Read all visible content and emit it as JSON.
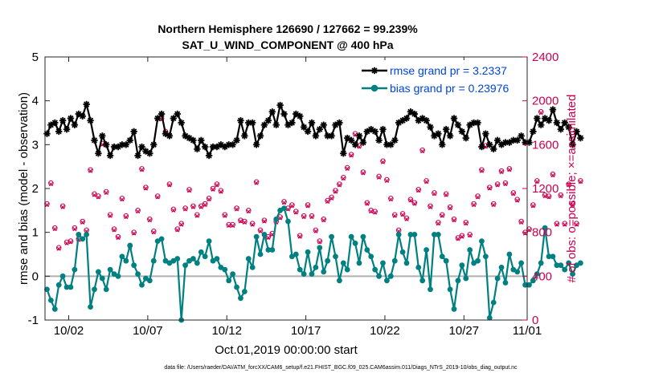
{
  "chart_data": {
    "type": "line",
    "title_line1": "Northern Hemisphere 126690 / 127662 = 99.239%",
    "title_line2": "SAT_U_WIND_COMPONENT @ 400 hPa",
    "xlabel": "Oct.01,2019 00:00:00 start",
    "ylabel": "rmse and bias (model - observation)",
    "y2label": "# of obs: o=possible; ×=assimilated",
    "footnote": "data file: /Users/raeder/DAI/ATM_forcXX/CAM6_setup/f.e21.FHIST_BGC.f09_025.CAM6assim.011/Diags_NTrS_2019-10/obs_diag_output.nc",
    "x_range": [
      0.5,
      31.0
    ],
    "ylim": [
      -1,
      5
    ],
    "y2lim": [
      0,
      2400
    ],
    "x_ticks": [
      {
        "pos": 2,
        "label": "10/02"
      },
      {
        "pos": 7,
        "label": "10/07"
      },
      {
        "pos": 12,
        "label": "10/12"
      },
      {
        "pos": 17,
        "label": "10/17"
      },
      {
        "pos": 22,
        "label": "10/22"
      },
      {
        "pos": 27,
        "label": "10/27"
      },
      {
        "pos": 31,
        "label": "11/01"
      }
    ],
    "y_ticks": [
      {
        "v": -1,
        "label": "-1"
      },
      {
        "v": 0,
        "label": "0"
      },
      {
        "v": 1,
        "label": "1"
      },
      {
        "v": 2,
        "label": "2"
      },
      {
        "v": 3,
        "label": "3"
      },
      {
        "v": 4,
        "label": "4"
      },
      {
        "v": 5,
        "label": "5"
      }
    ],
    "y2_ticks": [
      {
        "v": 0,
        "label": "0"
      },
      {
        "v": 400,
        "label": "400"
      },
      {
        "v": 800,
        "label": "800"
      },
      {
        "v": 1200,
        "label": "1200"
      },
      {
        "v": 1600,
        "label": "1600"
      },
      {
        "v": 2000,
        "label": "2000"
      },
      {
        "v": 2400,
        "label": "2400"
      }
    ],
    "grid": false,
    "zero_line": true,
    "legend_position": "top-right",
    "colors": {
      "rmse": "#000000",
      "bias": "#008080",
      "obs": "#cc0050",
      "zero_line": "#b0b0b0"
    },
    "series": [
      {
        "name": "rmse",
        "legend": "rmse grand pr = 3.2337",
        "x_start": 0.625,
        "x_step": 0.25,
        "values": [
          3.25,
          3.45,
          3.5,
          3.3,
          3.55,
          3.35,
          3.6,
          3.45,
          3.7,
          3.65,
          3.92,
          3.55,
          3.1,
          2.8,
          3.2,
          3.0,
          2.75,
          2.95,
          2.95,
          3.0,
          3.0,
          3.1,
          3.3,
          2.75,
          2.95,
          2.85,
          2.8,
          3.0,
          3.6,
          3.7,
          3.25,
          3.2,
          3.6,
          3.7,
          3.5,
          3.2,
          3.15,
          3.1,
          2.9,
          3.1,
          2.95,
          2.75,
          2.95,
          2.95,
          3.0,
          2.95,
          3.0,
          3.0,
          3.1,
          3.55,
          3.2,
          3.5,
          3.5,
          3.0,
          3.2,
          3.45,
          3.55,
          3.75,
          3.45,
          3.9,
          3.7,
          3.45,
          3.5,
          3.7,
          3.65,
          3.4,
          3.3,
          3.5,
          3.2,
          3.35,
          3.45,
          3.2,
          3.2,
          3.45,
          3.5,
          2.8,
          3.15,
          3.1,
          3.0,
          3.2,
          3.05,
          3.3,
          3.35,
          3.3,
          3.1,
          3.35,
          3.0,
          3.0,
          3.1,
          3.5,
          3.55,
          3.6,
          3.75,
          3.7,
          3.55,
          3.6,
          3.55,
          3.4,
          3.2,
          3.25,
          3.0,
          3.35,
          3.2,
          3.6,
          3.45,
          3.3,
          3.15,
          3.45,
          3.5,
          3.5,
          2.95,
          3.25,
          3.0,
          2.9,
          3.1,
          3.0,
          3.05,
          3.05,
          3.1,
          3.1,
          3.2,
          3.05,
          3.05,
          3.3,
          3.6,
          3.45,
          3.6,
          3.55,
          3.8,
          3.5,
          3.35,
          3.5,
          3.4,
          3.0,
          3.3,
          3.15
        ]
      },
      {
        "name": "bias",
        "legend": "bias grand pr = 0.23976",
        "x_start": 0.625,
        "x_step": 0.25,
        "values": [
          -0.3,
          -0.55,
          -0.75,
          -0.2,
          0.0,
          -0.25,
          -0.25,
          0.15,
          0.95,
          0.85,
          0.95,
          -0.7,
          -0.3,
          0.1,
          -0.05,
          -0.3,
          0.15,
          0.05,
          0.0,
          0.45,
          0.35,
          0.7,
          0.25,
          0.05,
          -0.2,
          -0.05,
          -0.1,
          0.35,
          0.8,
          0.85,
          0.35,
          0.3,
          0.35,
          0.4,
          -1.0,
          0.25,
          0.35,
          0.4,
          0.3,
          0.55,
          0.45,
          0.8,
          0.35,
          0.4,
          0.2,
          0.15,
          -0.1,
          0.05,
          -0.25,
          -0.5,
          -0.35,
          0.4,
          0.2,
          0.9,
          0.5,
          0.95,
          0.6,
          0.6,
          1.3,
          1.5,
          1.55,
          1.25,
          0.45,
          0.5,
          0.15,
          0.05,
          0.55,
          0.05,
          0.2,
          0.65,
          0.1,
          0.35,
          0.9,
          0.45,
          -0.1,
          0.3,
          0.15,
          0.9,
          0.75,
          0.3,
          0.9,
          0.6,
          0.45,
          0.15,
          0.0,
          0.3,
          -0.1,
          0.0,
          0.35,
          0.95,
          0.55,
          0.3,
          0.95,
          0.95,
          0.2,
          -0.1,
          0.6,
          -0.3,
          0.95,
          0.95,
          0.45,
          0.35,
          -0.3,
          -0.75,
          -0.1,
          0.25,
          -0.05,
          0.6,
          0.3,
          0.35,
          0.8,
          0.45,
          -0.95,
          -0.6,
          -0.05,
          0.2,
          -0.15,
          0.5,
          0.15,
          0.1,
          0.3,
          -0.2,
          -0.2,
          -0.1,
          0.05,
          0.3,
          1.1,
          0.45,
          0.45,
          0.25,
          0.25,
          0.15,
          0.3,
          0.05,
          0.25,
          0.3
        ]
      },
      {
        "name": "possible",
        "marker": "o",
        "x_start": 0.625,
        "x_step": 0.25,
        "values": [
          1060,
          1250,
          840,
          660,
          1040,
          710,
          720,
          840,
          740,
          900,
          820,
          1370,
          1150,
          1130,
          1610,
          1170,
          960,
          830,
          760,
          1110,
          950,
          680,
          800,
          1000,
          1380,
          1210,
          920,
          810,
          1130,
          1840,
          1720,
          1240,
          1010,
          830,
          880,
          1020,
          1190,
          1040,
          960,
          1040,
          1060,
          1110,
          1200,
          1240,
          1180,
          960,
          870,
          870,
          1020,
          910,
          900,
          1000,
          880,
          1260,
          820,
          910,
          760,
          790,
          900,
          940,
          1080,
          1020,
          1050,
          990,
          770,
          950,
          1050,
          950,
          820,
          720,
          920,
          1090,
          1120,
          1180,
          1240,
          1300,
          1390,
          1510,
          1700,
          1590,
          1350,
          1070,
          1000,
          990,
          1310,
          1450,
          1280,
          1110,
          960,
          820,
          970,
          930,
          1100,
          1070,
          1190,
          1550,
          1270,
          1040,
          1160,
          890,
          960,
          1150,
          1030,
          920,
          750,
          770,
          890,
          780,
          1060,
          1130,
          1370,
          1590,
          1210,
          1060,
          1240,
          1360,
          1250,
          1380,
          1160,
          1100,
          900,
          800,
          830,
          1050,
          1270,
          1900,
          1140,
          1130,
          1330,
          880,
          1140,
          880,
          1240,
          1060,
          880,
          1270
        ]
      },
      {
        "name": "assimilated",
        "marker": "x",
        "x_start": 0.625,
        "x_step": 0.25,
        "values": [
          1050,
          1240,
          830,
          650,
          1030,
          700,
          710,
          830,
          730,
          890,
          810,
          1360,
          1140,
          1120,
          1600,
          1160,
          950,
          820,
          750,
          1100,
          940,
          670,
          790,
          990,
          1370,
          1200,
          910,
          800,
          1120,
          1830,
          1710,
          1230,
          1000,
          820,
          870,
          1010,
          1180,
          1030,
          950,
          1030,
          1050,
          1100,
          1190,
          1230,
          1170,
          950,
          860,
          860,
          1010,
          900,
          890,
          990,
          870,
          1250,
          810,
          900,
          750,
          780,
          890,
          930,
          1070,
          1010,
          1040,
          980,
          760,
          940,
          1040,
          940,
          810,
          710,
          910,
          1080,
          1110,
          1170,
          1230,
          1290,
          1380,
          1500,
          1690,
          1580,
          1340,
          1060,
          990,
          980,
          1300,
          1440,
          1270,
          1100,
          950,
          810,
          960,
          920,
          1090,
          1060,
          1180,
          1540,
          1260,
          1030,
          1150,
          880,
          950,
          1140,
          1020,
          910,
          740,
          760,
          880,
          770,
          1050,
          1120,
          1360,
          1580,
          1200,
          1050,
          1230,
          1350,
          1240,
          1370,
          1150,
          1090,
          890,
          790,
          820,
          1040,
          1260,
          1890,
          1130,
          1120,
          1320,
          870,
          1130,
          870,
          1230,
          1050,
          870,
          1260
        ]
      }
    ]
  }
}
